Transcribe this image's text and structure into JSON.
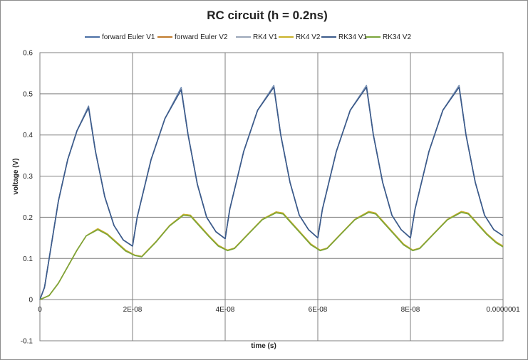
{
  "chart_data": {
    "type": "line",
    "title": "RC circuit (h = 0.2ns)",
    "xlabel": "time (s)",
    "ylabel": "voltage (V)",
    "xlim": [
      0,
      1e-07
    ],
    "ylim": [
      -0.1,
      0.6
    ],
    "x_ticks": [
      0,
      2e-08,
      4e-08,
      6e-08,
      8e-08,
      1e-07
    ],
    "x_tick_labels": [
      "0",
      "2E-08",
      "4E-08",
      "6E-08",
      "8E-08",
      "0.0000001"
    ],
    "y_ticks": [
      -0.1,
      0,
      0.1,
      0.2,
      0.3,
      0.4,
      0.5,
      0.6
    ],
    "y_tick_labels": [
      "-0.1",
      "0",
      "0.1",
      "0.2",
      "0.3",
      "0.4",
      "0.5",
      "0.6"
    ],
    "grid": "vertical-major-and-horizontal-major",
    "legend_position": "top",
    "series": [
      {
        "name": "forward Euler V1",
        "color": "#4a6fa5",
        "x": [
          0,
          1e-09,
          2e-09,
          4e-09,
          6e-09,
          8e-09,
          1.05e-08,
          1.2e-08,
          1.4e-08,
          1.6e-08,
          1.8e-08,
          2e-08,
          2.1e-08,
          2.4e-08,
          2.7e-08,
          3.05e-08,
          3.2e-08,
          3.4e-08,
          3.6e-08,
          3.8e-08,
          4e-08,
          4.1e-08,
          4.4e-08,
          4.7e-08,
          5.05e-08,
          5.2e-08,
          5.4e-08,
          5.6e-08,
          5.8e-08,
          6e-08,
          6.1e-08,
          6.4e-08,
          6.7e-08,
          7.05e-08,
          7.2e-08,
          7.4e-08,
          7.6e-08,
          7.8e-08,
          8e-08,
          8.1e-08,
          8.4e-08,
          8.7e-08,
          9.05e-08,
          9.2e-08,
          9.4e-08,
          9.6e-08,
          9.8e-08,
          1e-07
        ],
        "y": [
          0,
          0.03,
          0.1,
          0.24,
          0.34,
          0.41,
          0.47,
          0.36,
          0.25,
          0.18,
          0.145,
          0.13,
          0.2,
          0.34,
          0.44,
          0.515,
          0.4,
          0.28,
          0.2,
          0.165,
          0.148,
          0.22,
          0.36,
          0.46,
          0.52,
          0.4,
          0.285,
          0.205,
          0.17,
          0.15,
          0.22,
          0.36,
          0.46,
          0.52,
          0.4,
          0.285,
          0.205,
          0.17,
          0.15,
          0.22,
          0.36,
          0.46,
          0.52,
          0.4,
          0.285,
          0.205,
          0.17,
          0.155
        ]
      },
      {
        "name": "forward Euler V2",
        "color": "#c07a2a",
        "x": [
          0,
          2e-09,
          4e-09,
          6e-09,
          8e-09,
          1e-08,
          1.25e-08,
          1.45e-08,
          1.65e-08,
          1.85e-08,
          2.05e-08,
          2.2e-08,
          2.5e-08,
          2.8e-08,
          3.1e-08,
          3.25e-08,
          3.45e-08,
          3.65e-08,
          3.85e-08,
          4.05e-08,
          4.2e-08,
          4.5e-08,
          4.8e-08,
          5.1e-08,
          5.25e-08,
          5.45e-08,
          5.65e-08,
          5.85e-08,
          6.05e-08,
          6.2e-08,
          6.5e-08,
          6.8e-08,
          7.1e-08,
          7.25e-08,
          7.45e-08,
          7.65e-08,
          7.85e-08,
          8.05e-08,
          8.2e-08,
          8.5e-08,
          8.8e-08,
          9.1e-08,
          9.25e-08,
          9.45e-08,
          9.65e-08,
          9.85e-08,
          1e-07
        ],
        "y": [
          0,
          0.01,
          0.04,
          0.08,
          0.12,
          0.155,
          0.172,
          0.16,
          0.14,
          0.12,
          0.108,
          0.105,
          0.14,
          0.18,
          0.207,
          0.205,
          0.18,
          0.155,
          0.132,
          0.12,
          0.125,
          0.16,
          0.195,
          0.213,
          0.21,
          0.185,
          0.16,
          0.135,
          0.12,
          0.125,
          0.16,
          0.195,
          0.214,
          0.21,
          0.185,
          0.16,
          0.135,
          0.12,
          0.125,
          0.16,
          0.195,
          0.214,
          0.21,
          0.185,
          0.16,
          0.14,
          0.13
        ]
      },
      {
        "name": "RK4 V1",
        "color": "#9aa6b8",
        "x": [
          0,
          1e-09,
          2e-09,
          4e-09,
          6e-09,
          8e-09,
          1.05e-08,
          1.2e-08,
          1.4e-08,
          1.6e-08,
          1.8e-08,
          2e-08,
          2.1e-08,
          2.4e-08,
          2.7e-08,
          3.05e-08,
          3.2e-08,
          3.4e-08,
          3.6e-08,
          3.8e-08,
          4e-08,
          4.1e-08,
          4.4e-08,
          4.7e-08,
          5.05e-08,
          5.2e-08,
          5.4e-08,
          5.6e-08,
          5.8e-08,
          6e-08,
          6.1e-08,
          6.4e-08,
          6.7e-08,
          7.05e-08,
          7.2e-08,
          7.4e-08,
          7.6e-08,
          7.8e-08,
          8e-08,
          8.1e-08,
          8.4e-08,
          8.7e-08,
          9.05e-08,
          9.2e-08,
          9.4e-08,
          9.6e-08,
          9.8e-08,
          1e-07
        ],
        "y": [
          0,
          0.03,
          0.1,
          0.24,
          0.34,
          0.41,
          0.468,
          0.36,
          0.25,
          0.18,
          0.145,
          0.13,
          0.2,
          0.34,
          0.44,
          0.512,
          0.4,
          0.28,
          0.2,
          0.165,
          0.148,
          0.22,
          0.36,
          0.46,
          0.518,
          0.4,
          0.285,
          0.205,
          0.17,
          0.15,
          0.22,
          0.36,
          0.46,
          0.518,
          0.4,
          0.285,
          0.205,
          0.17,
          0.15,
          0.22,
          0.36,
          0.46,
          0.518,
          0.4,
          0.285,
          0.205,
          0.17,
          0.155
        ]
      },
      {
        "name": "RK4 V2",
        "color": "#c9b227",
        "x": [
          0,
          2e-09,
          4e-09,
          6e-09,
          8e-09,
          1e-08,
          1.25e-08,
          1.45e-08,
          1.65e-08,
          1.85e-08,
          2.05e-08,
          2.2e-08,
          2.5e-08,
          2.8e-08,
          3.1e-08,
          3.25e-08,
          3.45e-08,
          3.65e-08,
          3.85e-08,
          4.05e-08,
          4.2e-08,
          4.5e-08,
          4.8e-08,
          5.1e-08,
          5.25e-08,
          5.45e-08,
          5.65e-08,
          5.85e-08,
          6.05e-08,
          6.2e-08,
          6.5e-08,
          6.8e-08,
          7.1e-08,
          7.25e-08,
          7.45e-08,
          7.65e-08,
          7.85e-08,
          8.05e-08,
          8.2e-08,
          8.5e-08,
          8.8e-08,
          9.1e-08,
          9.25e-08,
          9.45e-08,
          9.65e-08,
          9.85e-08,
          1e-07
        ],
        "y": [
          0,
          0.01,
          0.04,
          0.08,
          0.12,
          0.155,
          0.172,
          0.16,
          0.14,
          0.12,
          0.108,
          0.105,
          0.14,
          0.18,
          0.207,
          0.205,
          0.18,
          0.155,
          0.132,
          0.12,
          0.125,
          0.16,
          0.195,
          0.213,
          0.21,
          0.185,
          0.16,
          0.135,
          0.12,
          0.125,
          0.16,
          0.195,
          0.214,
          0.21,
          0.185,
          0.16,
          0.135,
          0.12,
          0.125,
          0.16,
          0.195,
          0.214,
          0.21,
          0.185,
          0.16,
          0.14,
          0.13
        ]
      },
      {
        "name": "RK34 V1",
        "color": "#3b5a8a",
        "x": [
          0,
          1e-09,
          2e-09,
          4e-09,
          6e-09,
          8e-09,
          1.05e-08,
          1.2e-08,
          1.4e-08,
          1.6e-08,
          1.8e-08,
          2e-08,
          2.1e-08,
          2.4e-08,
          2.7e-08,
          3.05e-08,
          3.2e-08,
          3.4e-08,
          3.6e-08,
          3.8e-08,
          4e-08,
          4.1e-08,
          4.4e-08,
          4.7e-08,
          5.05e-08,
          5.2e-08,
          5.4e-08,
          5.6e-08,
          5.8e-08,
          6e-08,
          6.1e-08,
          6.4e-08,
          6.7e-08,
          7.05e-08,
          7.2e-08,
          7.4e-08,
          7.6e-08,
          7.8e-08,
          8e-08,
          8.1e-08,
          8.4e-08,
          8.7e-08,
          9.05e-08,
          9.2e-08,
          9.4e-08,
          9.6e-08,
          9.8e-08,
          1e-07
        ],
        "y": [
          0,
          0.03,
          0.1,
          0.24,
          0.34,
          0.41,
          0.466,
          0.36,
          0.25,
          0.18,
          0.145,
          0.13,
          0.2,
          0.34,
          0.44,
          0.51,
          0.4,
          0.28,
          0.2,
          0.165,
          0.148,
          0.22,
          0.36,
          0.46,
          0.516,
          0.4,
          0.285,
          0.205,
          0.17,
          0.15,
          0.22,
          0.36,
          0.46,
          0.516,
          0.4,
          0.285,
          0.205,
          0.17,
          0.15,
          0.22,
          0.36,
          0.46,
          0.516,
          0.4,
          0.285,
          0.205,
          0.17,
          0.155
        ]
      },
      {
        "name": "RK34 V2",
        "color": "#7aa43a",
        "x": [
          0,
          2e-09,
          4e-09,
          6e-09,
          8e-09,
          1e-08,
          1.25e-08,
          1.45e-08,
          1.65e-08,
          1.85e-08,
          2.05e-08,
          2.2e-08,
          2.5e-08,
          2.8e-08,
          3.1e-08,
          3.25e-08,
          3.45e-08,
          3.65e-08,
          3.85e-08,
          4.05e-08,
          4.2e-08,
          4.5e-08,
          4.8e-08,
          5.1e-08,
          5.25e-08,
          5.45e-08,
          5.65e-08,
          5.85e-08,
          6.05e-08,
          6.2e-08,
          6.5e-08,
          6.8e-08,
          7.1e-08,
          7.25e-08,
          7.45e-08,
          7.65e-08,
          7.85e-08,
          8.05e-08,
          8.2e-08,
          8.5e-08,
          8.8e-08,
          9.1e-08,
          9.25e-08,
          9.45e-08,
          9.65e-08,
          9.85e-08,
          1e-07
        ],
        "y": [
          0,
          0.01,
          0.04,
          0.08,
          0.12,
          0.155,
          0.17,
          0.158,
          0.138,
          0.118,
          0.107,
          0.104,
          0.139,
          0.179,
          0.205,
          0.203,
          0.178,
          0.153,
          0.13,
          0.119,
          0.124,
          0.159,
          0.194,
          0.211,
          0.208,
          0.183,
          0.158,
          0.133,
          0.119,
          0.124,
          0.159,
          0.194,
          0.212,
          0.208,
          0.183,
          0.158,
          0.133,
          0.119,
          0.124,
          0.159,
          0.194,
          0.212,
          0.208,
          0.183,
          0.158,
          0.138,
          0.128
        ]
      }
    ]
  }
}
